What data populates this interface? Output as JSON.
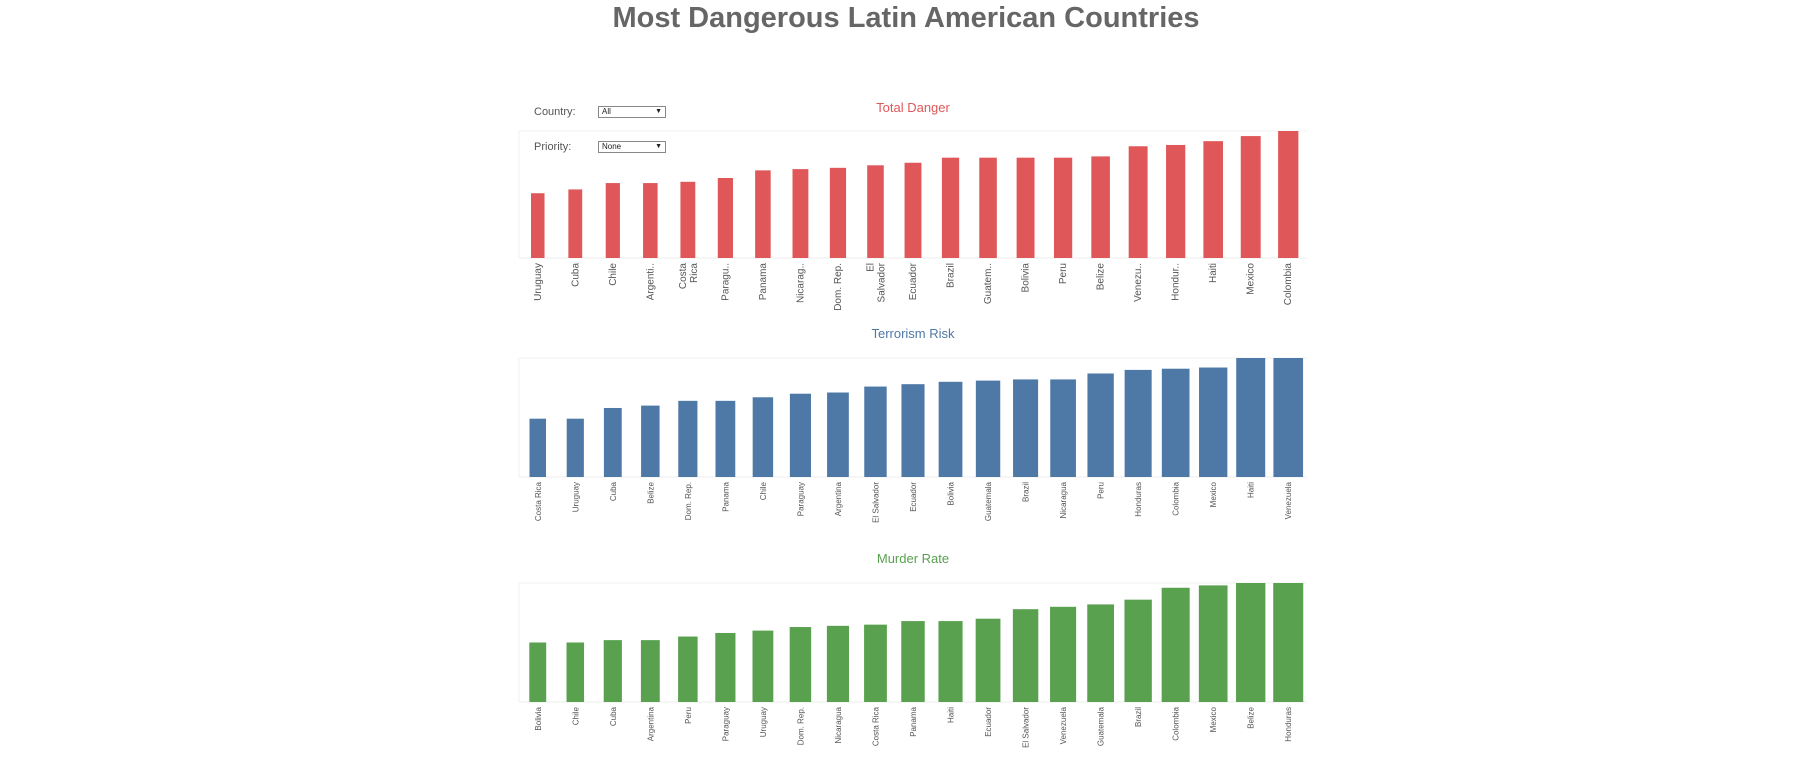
{
  "page": {
    "title": "Most Dangerous Latin American Countries"
  },
  "filters": {
    "country": {
      "label": "Country:",
      "value": "All"
    },
    "priority": {
      "label": "Priority:",
      "value": "None"
    }
  },
  "chart_data": [
    {
      "type": "bar",
      "title": "Total Danger",
      "color": "#e05759",
      "categories": [
        "Uruguay",
        "Cuba",
        "Chile",
        "Argenti..",
        "Costa Rica",
        "Paragu..",
        "Panama",
        "Nicarag..",
        "Dom. Rep.",
        "El Salvador",
        "Ecuador",
        "Brazil",
        "Guatem..",
        "Bolivia",
        "Peru",
        "Belize",
        "Venezu..",
        "Hondur..",
        "Haiti",
        "Mexico",
        "Colombia"
      ],
      "values": [
        51,
        54,
        59,
        59,
        60,
        63,
        69,
        70,
        71,
        73,
        75,
        79,
        79,
        79,
        79,
        80,
        88,
        89,
        92,
        96,
        100
      ],
      "ylim": [
        0,
        100
      ],
      "xlabel": "",
      "ylabel": ""
    },
    {
      "type": "bar",
      "title": "Terrorism Risk",
      "color": "#4e79a7",
      "categories": [
        "Costa Rica",
        "Uruguay",
        "Cuba",
        "Belize",
        "Dom. Rep.",
        "Panama",
        "Chile",
        "Paraguay",
        "Argentina",
        "El Salvador",
        "Ecuador",
        "Bolivia",
        "Guatemala",
        "Brazil",
        "Nicaragua",
        "Peru",
        "Honduras",
        "Colombia",
        "Mexico",
        "Haiti",
        "Venezuela"
      ],
      "values": [
        49,
        49,
        58,
        60,
        64,
        64,
        67,
        70,
        71,
        76,
        78,
        80,
        81,
        82,
        82,
        87,
        90,
        91,
        92,
        100,
        100
      ],
      "ylim": [
        0,
        100
      ],
      "xlabel": "",
      "ylabel": ""
    },
    {
      "type": "bar",
      "title": "Murder Rate",
      "color": "#59a14f",
      "categories": [
        "Bolivia",
        "Chile",
        "Cuba",
        "Argentina",
        "Peru",
        "Paraguay",
        "Uruguay",
        "Dom. Rep.",
        "Nicaragua",
        "Costa Rica",
        "Panama",
        "Haiti",
        "Ecuador",
        "El Salvador",
        "Venezuela",
        "Guatemala",
        "Brazil",
        "Colombia",
        "Mexico",
        "Belize",
        "Honduras"
      ],
      "values": [
        50,
        50,
        52,
        52,
        55,
        58,
        60,
        63,
        64,
        65,
        68,
        68,
        70,
        78,
        80,
        82,
        86,
        96,
        98,
        100,
        100
      ],
      "ylim": [
        0,
        100
      ],
      "xlabel": "",
      "ylabel": ""
    }
  ]
}
